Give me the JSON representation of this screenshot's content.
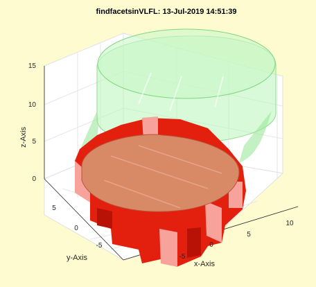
{
  "chart_data": {
    "type": "surface3d",
    "title": "findfacetsinVLFL: 13-Jul-2019 14:51:39",
    "xlabel": "x-Axis",
    "ylabel": "y-Axis",
    "zlabel": "z-Axis",
    "xticks": [
      "-5",
      "0",
      "5",
      "10"
    ],
    "yticks": [
      "5",
      "0",
      "-5"
    ],
    "zticks": [
      "0",
      "5",
      "10",
      "15"
    ],
    "zlim": [
      0,
      15
    ],
    "grid": true,
    "series": [
      {
        "shape": "gear",
        "teeth": 12,
        "z": [
          0,
          4
        ],
        "color": "#e8180a"
      },
      {
        "shape": "cylinder",
        "z": [
          4,
          15
        ],
        "color": "#90f090",
        "opacity": 0.3
      }
    ]
  }
}
